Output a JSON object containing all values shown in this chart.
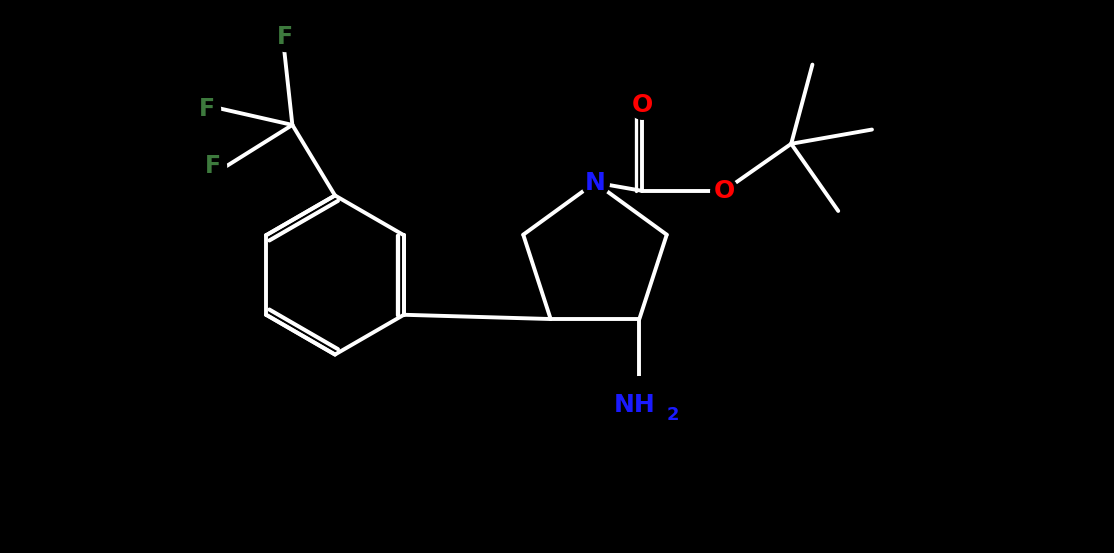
{
  "background_color": "#000000",
  "bond_color": "#ffffff",
  "atom_colors": {
    "N": "#1a1aff",
    "O": "#ff0000",
    "F": "#3d7a3d"
  },
  "bond_width": 2.8,
  "font_size_atom": 18,
  "font_size_sub": 13,
  "scale": 1.0
}
